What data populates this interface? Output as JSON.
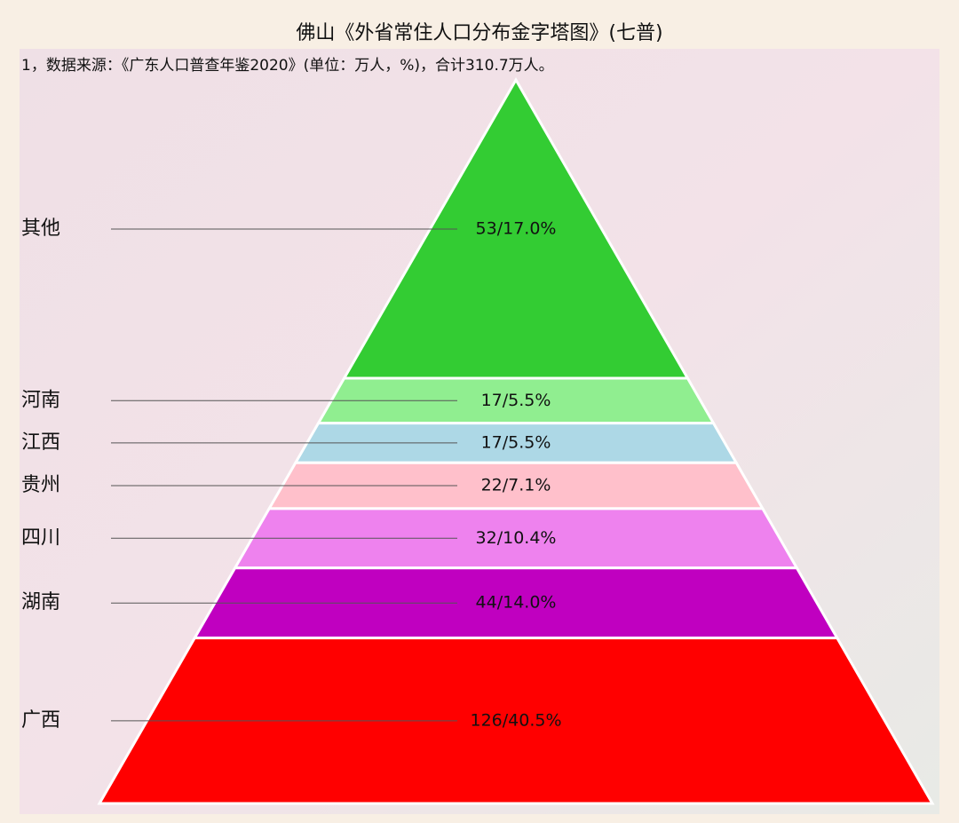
{
  "chart_data": {
    "type": "pyramid",
    "title": "佛山《外省常住人口分布金字塔图》(七普)",
    "subtitle": "1，数据来源：《广东人口普查年鉴2020》(单位：万人，%)，合计310.7万人。",
    "categories": [
      "其他",
      "河南",
      "江西",
      "贵州",
      "四川",
      "湖南",
      "广西"
    ],
    "values": [
      53,
      17,
      17,
      22,
      32,
      44,
      126
    ],
    "shares": [
      17.0,
      5.5,
      5.5,
      7.1,
      10.4,
      14.0,
      40.5
    ],
    "value_labels": [
      "53/17.0%",
      "17/5.5%",
      "17/5.5%",
      "22/7.1%",
      "32/10.4%",
      "44/14.0%",
      "126/40.5%"
    ],
    "colors": [
      "#33cc33",
      "#90ee90",
      "#add8e6",
      "#ffc0cb",
      "#ee82ee",
      "#c000c0",
      "#ff0000"
    ]
  }
}
